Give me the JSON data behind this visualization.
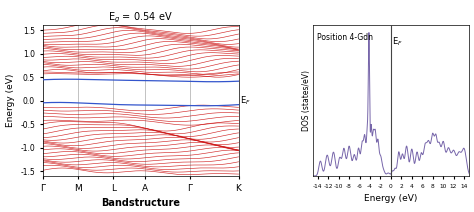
{
  "title_band": "E$_g$ = 0.54 eV",
  "xlabel_band": "Bandstructure",
  "ylabel_band": "Energy (eV)",
  "ylim_band": [
    -1.6,
    1.6
  ],
  "kpoints": [
    "Γ",
    "M",
    "L",
    "A",
    "Γ",
    "K"
  ],
  "ef_label": "E$_F$",
  "dos_title": "Position 4-Gdn",
  "dos_xlabel": "Energy (eV)",
  "dos_ylabel": "DOS (states/eV)",
  "dos_xlim": [
    -15,
    15
  ],
  "dos_ef_label": "E$_F$",
  "band_color_red": "#cc1111",
  "band_color_blue": "#3355cc",
  "dos_color": "#7766aa",
  "background": "#ffffff",
  "ef_line_color": "#444444",
  "grid_color": "#aaaaaa"
}
